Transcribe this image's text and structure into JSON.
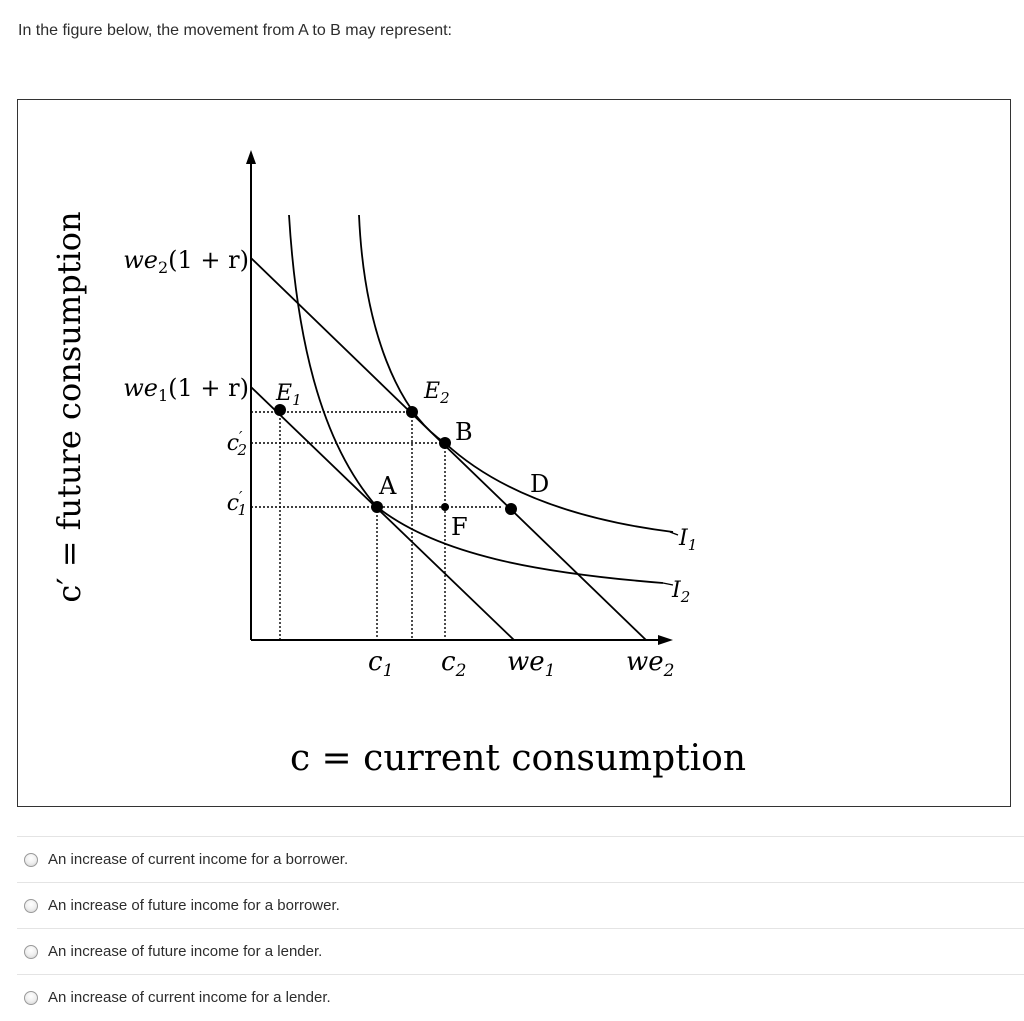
{
  "question": {
    "text": "In the figure below, the movement from A to B may represent:"
  },
  "figure": {
    "y_axis_label": "c′ = future consumption",
    "x_axis_label": "c = current consumption",
    "y_ticks": {
      "we2_1r": {
        "base": "we",
        "sub": "2",
        "rest": "(1 + r)"
      },
      "we1_1r": {
        "base": "we",
        "sub": "1",
        "rest": "(1 + r)"
      },
      "c2p": {
        "base": "c",
        "sup": "′",
        "sub": "2"
      },
      "c1p": {
        "base": "c",
        "sup": "′",
        "sub": "1"
      }
    },
    "x_ticks": {
      "c1": {
        "base": "c",
        "sub": "1"
      },
      "c2": {
        "base": "c",
        "sub": "2"
      },
      "we1": {
        "base": "we",
        "sub": "1"
      },
      "we2": {
        "base": "we",
        "sub": "2"
      }
    },
    "points": {
      "A": "A",
      "B": "B",
      "D": "D",
      "F": "F",
      "E1": {
        "base": "E",
        "sub": "1"
      },
      "E2": {
        "base": "E",
        "sub": "2"
      }
    },
    "curves": {
      "I1": {
        "base": "I",
        "sub": "1"
      },
      "I2": {
        "base": "I",
        "sub": "2"
      }
    }
  },
  "options": [
    {
      "label": "An increase of current income for a borrower.",
      "selected": false
    },
    {
      "label": "An increase of future income for a borrower.",
      "selected": false
    },
    {
      "label": "An increase of future income for a lender.",
      "selected": false
    },
    {
      "label": "An increase of current income for a lender.",
      "selected": false
    }
  ]
}
